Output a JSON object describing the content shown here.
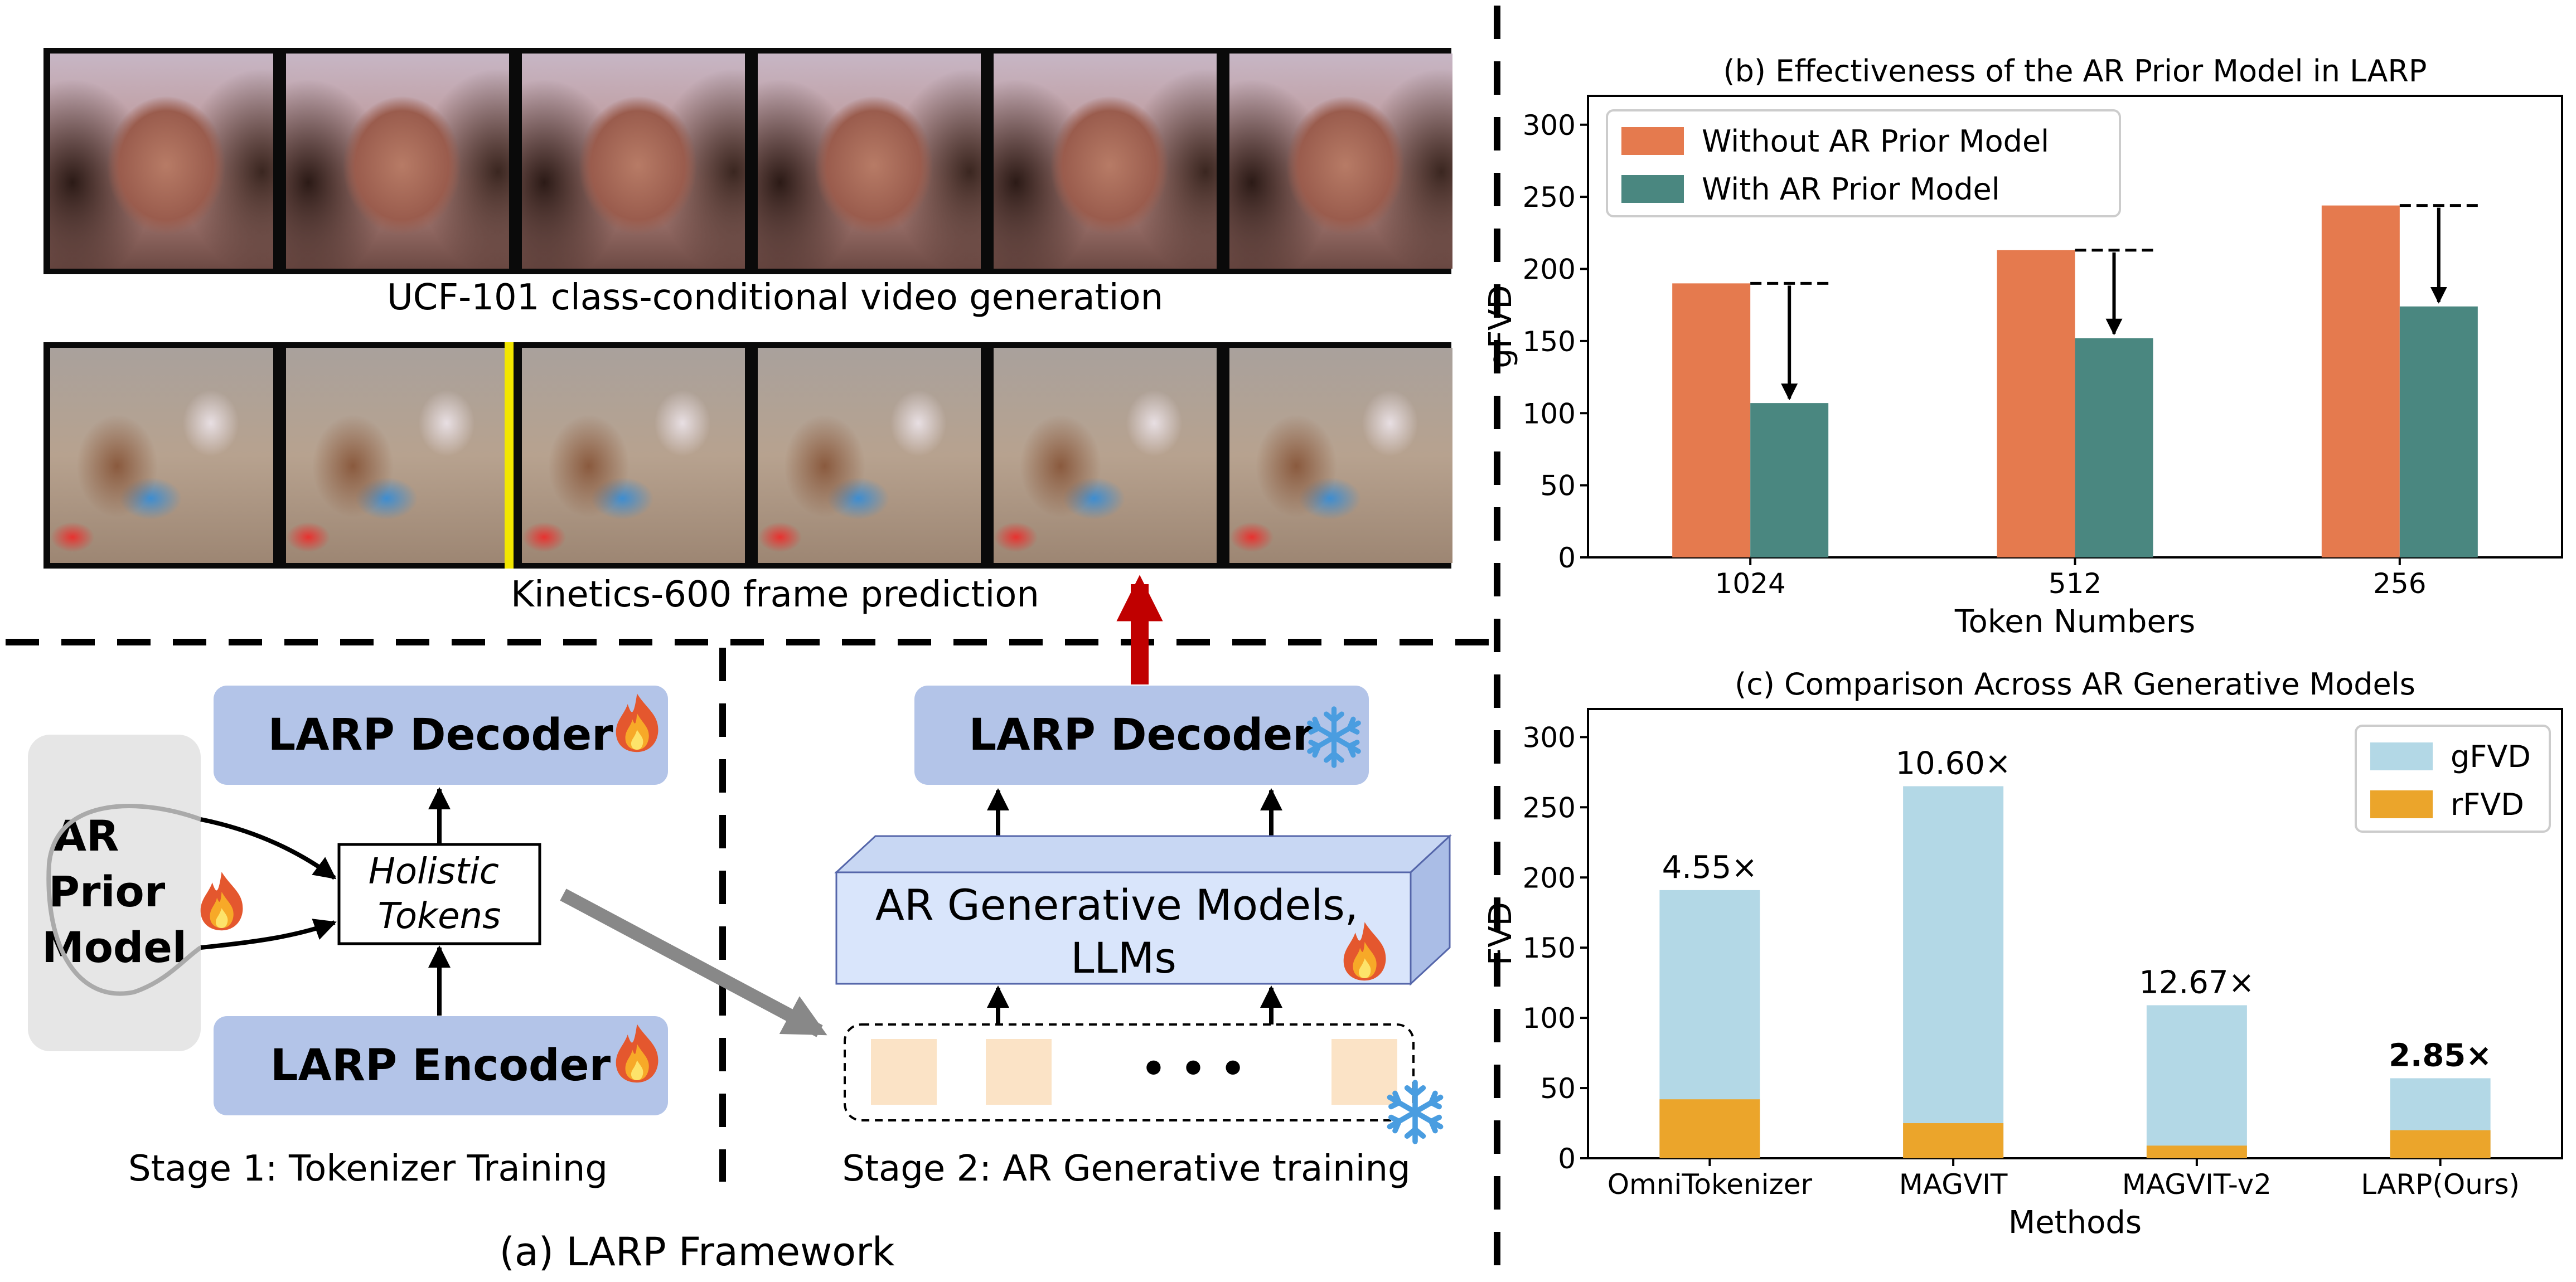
{
  "panel_a": {
    "caption": "(a) LARP Framework",
    "ucf_caption": "UCF-101 class-conditional video generation",
    "kinetics_caption": "Kinetics-600 frame prediction",
    "stage1": {
      "caption": "Stage 1: Tokenizer Training",
      "decoder_label": "LARP Decoder",
      "encoder_label": "LARP Encoder",
      "prior_label_lines": [
        "AR",
        "Prior",
        "Model"
      ],
      "tokens_label_lines": [
        "Holistic",
        "Tokens"
      ]
    },
    "stage2": {
      "caption": "Stage 2: AR Generative training",
      "decoder_label": "LARP Decoder",
      "ar_box_lines": [
        "AR Generative Models,",
        "LLMs"
      ],
      "ellipsis": "• • •"
    },
    "icons": {
      "trainable": "fire-icon",
      "frozen": "snowflake-icon"
    },
    "colors": {
      "module_box": "#b3c4e8",
      "ar_box": "#d9e5fb",
      "prior_bg": "#e6e6e6",
      "token_square": "#fbe3c6",
      "red_arrow": "#c00000"
    }
  },
  "chart_data": [
    {
      "type": "bar",
      "title": "(b) Effectiveness of the AR Prior Model in LARP",
      "xlabel": "Token Numbers",
      "ylabel": "gFVD",
      "categories": [
        "1024",
        "512",
        "256"
      ],
      "ylim": [
        0,
        320
      ],
      "yticks": [
        0,
        50,
        100,
        150,
        200,
        250,
        300
      ],
      "series": [
        {
          "name": "Without AR Prior Model",
          "color": "#e57a4e",
          "values": [
            190,
            213,
            244
          ]
        },
        {
          "name": "With AR Prior Model",
          "color": "#4a8780",
          "values": [
            107,
            152,
            174
          ]
        }
      ],
      "legend": "top-left"
    },
    {
      "type": "bar",
      "stacked": true,
      "title": "(c) Comparison Across AR Generative Models",
      "xlabel": "Methods",
      "ylabel": "FVD",
      "categories": [
        "OmniTokenizer",
        "MAGVIT",
        "MAGVIT-v2",
        "LARP(Ours)"
      ],
      "ylim": [
        0,
        320
      ],
      "yticks": [
        0,
        50,
        100,
        150,
        200,
        250,
        300
      ],
      "series": [
        {
          "name": "gFVD",
          "color": "#b3d8e6",
          "values": [
            191,
            265,
            109,
            57
          ]
        },
        {
          "name": "rFVD",
          "color": "#eba52b",
          "values": [
            42,
            25,
            9,
            20
          ]
        }
      ],
      "annotations": [
        "4.55×",
        "10.60×",
        "12.67×",
        "2.85×"
      ],
      "legend": "top-right"
    }
  ]
}
